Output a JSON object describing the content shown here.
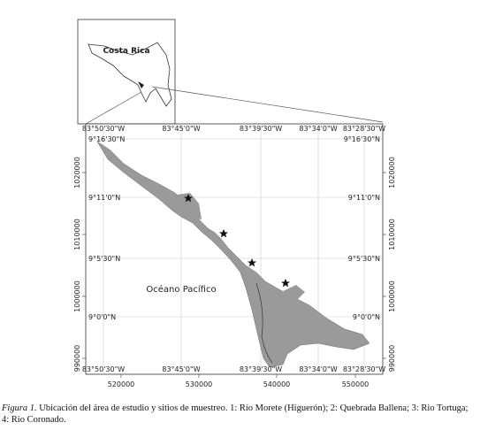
{
  "inset": {
    "label": "Costa Rica"
  },
  "map": {
    "sea_label": "Océano Pacífico",
    "longitude_labels": [
      "83°50'30\"W",
      "83°45'0\"W",
      "83°39'30\"W",
      "83°34'0\"W",
      "83°28'30\"W"
    ],
    "latitude_labels": [
      "9°16'30\"N",
      "9°11'0\"N",
      "9°5'30\"N",
      "9°0'0\"N"
    ],
    "easting_labels": [
      "520000",
      "530000",
      "540000",
      "550000"
    ],
    "northing_labels": [
      "1020000",
      "1010000",
      "1000000",
      "990000"
    ]
  },
  "caption": {
    "label": "Figura 1.",
    "text": " Ubicación del área de estudio y sitios de muestreo. 1: Río Morete (Higuerón); 2: Quebrada Ballena; 3: Rio Tortuga; 4: Rio Coronado."
  }
}
